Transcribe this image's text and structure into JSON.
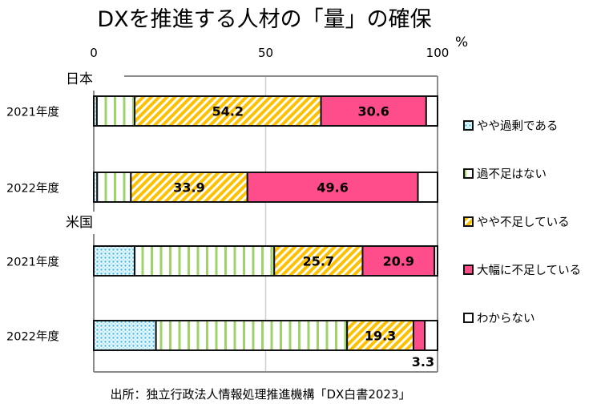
{
  "chart_data": {
    "type": "bar",
    "orientation": "horizontal",
    "stacked": true,
    "title": "DXを推進する人材の「量」の確保",
    "xlabel": "",
    "ylabel": "",
    "unit": "%",
    "xlim": [
      0,
      100
    ],
    "x_ticks": [
      0,
      50,
      100
    ],
    "grid": true,
    "legend_position": "right",
    "groups": [
      {
        "name": "日本",
        "rows": [
          {
            "label": "2021年度",
            "values": [
              0.9,
              11.0,
              54.2,
              30.6,
              3.3
            ]
          },
          {
            "label": "2022年度",
            "values": [
              1.0,
              9.8,
              33.9,
              49.6,
              5.7
            ]
          }
        ]
      },
      {
        "name": "米国",
        "rows": [
          {
            "label": "2021年度",
            "values": [
              11.9,
              40.6,
              25.7,
              20.9,
              0.9
            ]
          },
          {
            "label": "2022年度",
            "values": [
              18.1,
              55.6,
              19.3,
              3.3,
              3.7
            ]
          }
        ]
      }
    ],
    "series": [
      {
        "name": "やや過剰である",
        "color": "#5BC8EE",
        "pattern": "dots"
      },
      {
        "name": "過不足はない",
        "color": "#9ED36A",
        "pattern": "vertical-lines"
      },
      {
        "name": "やや不足している",
        "color": "#FFC000",
        "pattern": "diagonal-stripes"
      },
      {
        "name": "大幅に不足している",
        "color": "#FF4C8B",
        "pattern": "solid"
      },
      {
        "name": "わからない",
        "color": "#FFFFFF",
        "pattern": "none"
      }
    ],
    "data_labels": [
      {
        "group": 0,
        "row": 0,
        "series": 2,
        "text": "54.2"
      },
      {
        "group": 0,
        "row": 0,
        "series": 3,
        "text": "30.6"
      },
      {
        "group": 0,
        "row": 1,
        "series": 2,
        "text": "33.9"
      },
      {
        "group": 0,
        "row": 1,
        "series": 3,
        "text": "49.6"
      },
      {
        "group": 1,
        "row": 0,
        "series": 2,
        "text": "25.7"
      },
      {
        "group": 1,
        "row": 0,
        "series": 3,
        "text": "20.9"
      },
      {
        "group": 1,
        "row": 1,
        "series": 2,
        "text": "19.3"
      },
      {
        "group": 1,
        "row": 1,
        "series": 3,
        "text": "3.3",
        "placement": "below"
      }
    ],
    "source": "出所：独立行政法人情報処理推進機構「DX白書2023」"
  }
}
